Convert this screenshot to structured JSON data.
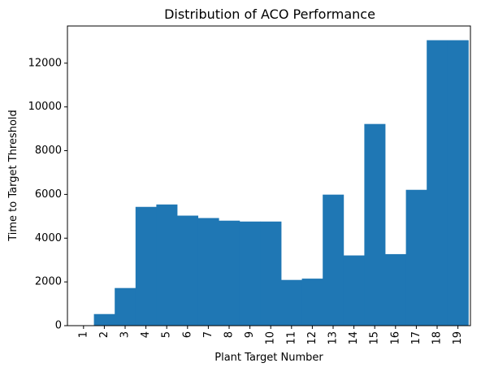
{
  "chart_data": {
    "type": "bar",
    "title": "Distribution of ACO Performance",
    "xlabel": "Plant Target Number",
    "ylabel": "Time to Target Threshold",
    "categories": [
      "1",
      "2",
      "3",
      "4",
      "5",
      "6",
      "7",
      "8",
      "9",
      "10",
      "11",
      "12",
      "13",
      "14",
      "15",
      "16",
      "17",
      "18",
      "19"
    ],
    "values": [
      0,
      530,
      1720,
      5430,
      5540,
      5030,
      4920,
      4800,
      4760,
      4760,
      2090,
      2150,
      5990,
      3210,
      9220,
      3270,
      6210,
      13050,
      13050
    ],
    "ylim": [
      0,
      13700
    ],
    "yticks": [
      0,
      2000,
      4000,
      6000,
      8000,
      10000,
      12000
    ],
    "ytick_labels": [
      "0",
      "2000",
      "4000",
      "6000",
      "8000",
      "10000",
      "12000"
    ],
    "grid": false,
    "legend": "none",
    "bar_color": "#1f77b4"
  }
}
